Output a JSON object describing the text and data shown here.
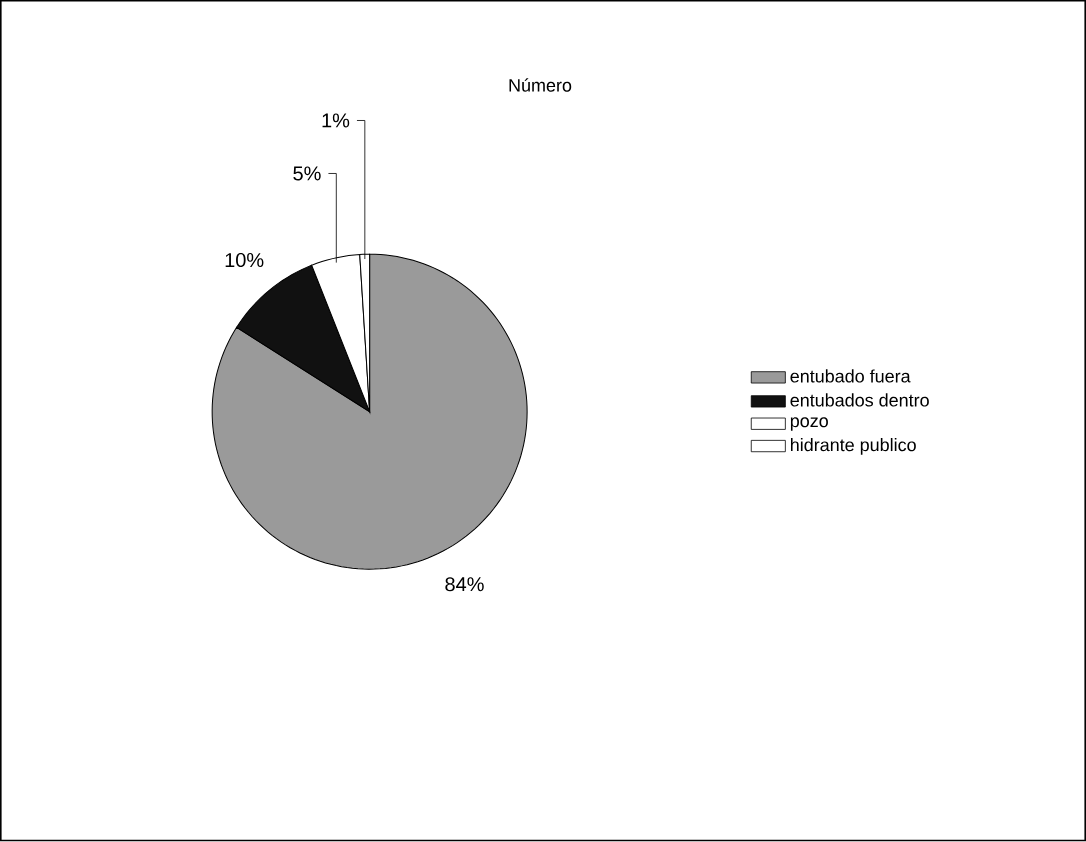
{
  "chart_data": {
    "type": "pie",
    "title": "Número",
    "categories": [
      "entubado fuera",
      "entubados dentro",
      "pozo",
      "hidrante publico"
    ],
    "values": [
      84,
      10,
      5,
      1
    ],
    "value_labels": [
      "84%",
      "10%",
      "5%",
      "1%"
    ],
    "colors": [
      "#9a9a9a",
      "#111111",
      "#ffffff",
      "#ffffff"
    ],
    "legend": "right"
  }
}
